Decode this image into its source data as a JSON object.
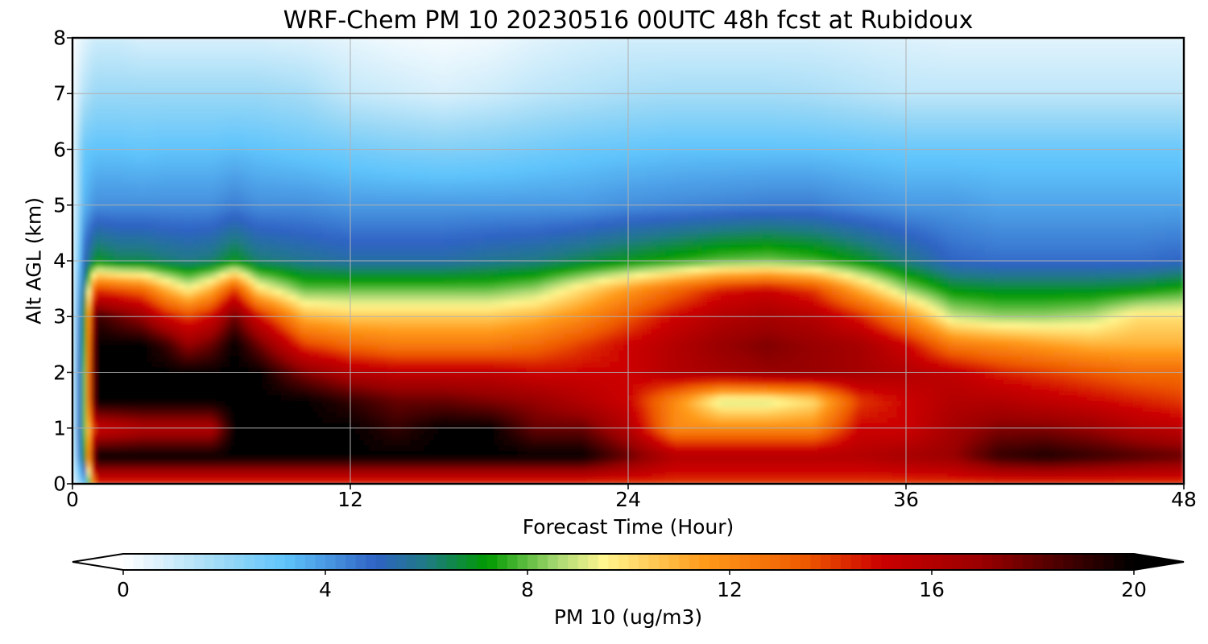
{
  "chart_data": {
    "type": "heatmap",
    "title": "WRF-Chem PM 10  20230516 00UTC 48h fcst at Rubidoux",
    "xlabel": "Forecast Time (Hour)",
    "ylabel": "Alt AGL (km)",
    "xlim": [
      0,
      48
    ],
    "ylim": [
      0,
      8
    ],
    "x_ticks": [
      "0",
      "12",
      "24",
      "36",
      "48"
    ],
    "y_ticks": [
      "0",
      "1",
      "2",
      "3",
      "4",
      "5",
      "6",
      "7",
      "8"
    ],
    "grid": true,
    "colorbar": {
      "label": "PM 10  (ug/m3)",
      "range": [
        0,
        20
      ],
      "ticks": [
        "0",
        "4",
        "8",
        "12",
        "16",
        "20"
      ],
      "extend": "both",
      "orientation": "horizontal",
      "placement": "bottom",
      "color_stops": [
        {
          "v": 0,
          "c": "#ffffff"
        },
        {
          "v": 2,
          "c": "#9ad8f6"
        },
        {
          "v": 3.2,
          "c": "#5fc4fb"
        },
        {
          "v": 5,
          "c": "#2f63c4"
        },
        {
          "v": 6,
          "c": "#1f7a84"
        },
        {
          "v": 7.2,
          "c": "#009a00"
        },
        {
          "v": 8.6,
          "c": "#a9d873"
        },
        {
          "v": 9.5,
          "c": "#fff68f"
        },
        {
          "v": 11.5,
          "c": "#ff9a1a"
        },
        {
          "v": 13.5,
          "c": "#ee5a00"
        },
        {
          "v": 15,
          "c": "#cc0000"
        },
        {
          "v": 17,
          "c": "#990000"
        },
        {
          "v": 20,
          "c": "#000000"
        }
      ]
    },
    "times": [
      0,
      0.5,
      1,
      2,
      3,
      4,
      5,
      6,
      7,
      8,
      10,
      12,
      14,
      16,
      18,
      20,
      22,
      24,
      26,
      28,
      30,
      32,
      34,
      36,
      38,
      40,
      42,
      44,
      46,
      48
    ],
    "altitudes_km": [
      0,
      0.5,
      1,
      1.5,
      2,
      2.5,
      3,
      3.5,
      4,
      5,
      6,
      7,
      8
    ],
    "values": [
      [
        0.5,
        3,
        14,
        14,
        14,
        14,
        14,
        14,
        14,
        14,
        14,
        14,
        14,
        14,
        14,
        14,
        14,
        14,
        14,
        14,
        14,
        14,
        14,
        14,
        14,
        14,
        14,
        14,
        14,
        14
      ],
      [
        0.5,
        7,
        20,
        20,
        20,
        20,
        20,
        20,
        20,
        20,
        20,
        20,
        20,
        20,
        20,
        20,
        20,
        18,
        16,
        16,
        16,
        16,
        16,
        16.5,
        17,
        19,
        19.5,
        19,
        18.5,
        18
      ],
      [
        0.5,
        8,
        15,
        15.5,
        16,
        16,
        16,
        16,
        20,
        20,
        20,
        20,
        19,
        20,
        20,
        18,
        18,
        16,
        12,
        12,
        12,
        12,
        15,
        15,
        16.5,
        17.5,
        17.5,
        17,
        16,
        15.5
      ],
      [
        0.5,
        8,
        20,
        20,
        20,
        20,
        20,
        20,
        20,
        20,
        20,
        19,
        18,
        18,
        17.5,
        17,
        16,
        15,
        12,
        9,
        9,
        10,
        14,
        15,
        16,
        16,
        15.5,
        15,
        14.5,
        14
      ],
      [
        0.5,
        8,
        20,
        20,
        20,
        20,
        20,
        20,
        20,
        20,
        17.5,
        16,
        15.5,
        15.5,
        15.5,
        15,
        15,
        15,
        16,
        16.5,
        17,
        17,
        16.5,
        16,
        15.5,
        14.5,
        14,
        13.5,
        13,
        13
      ],
      [
        0.5,
        7.5,
        20,
        20,
        20,
        19,
        17,
        18,
        20,
        18,
        14,
        13,
        12.5,
        12.5,
        12.5,
        13,
        14,
        15,
        16,
        17,
        17.5,
        17,
        16.5,
        15,
        12.5,
        12,
        11.5,
        11,
        11,
        11
      ],
      [
        0.5,
        7,
        19,
        18,
        17,
        15,
        14,
        15,
        18,
        15,
        11,
        10.5,
        10.5,
        10.5,
        10.5,
        11,
        12,
        13.5,
        15,
        16,
        16.5,
        16,
        14.5,
        12,
        9,
        8.5,
        8.5,
        8.8,
        10,
        10
      ],
      [
        0.5,
        6,
        14,
        13.5,
        13,
        11,
        9.5,
        11,
        14,
        10,
        8,
        8,
        8,
        8,
        8,
        8.5,
        10,
        11.5,
        13,
        14.5,
        15,
        14,
        11,
        8.5,
        7,
        6.8,
        6.8,
        6.8,
        7,
        7.5
      ],
      [
        0.5,
        5,
        7,
        6.5,
        6.5,
        6.2,
        6,
        6.2,
        7,
        6.2,
        5.8,
        5.5,
        5.5,
        5.5,
        5.8,
        6,
        6.5,
        7,
        7.5,
        8,
        8.2,
        7.8,
        7,
        6,
        5,
        4.8,
        4.8,
        4.8,
        4.8,
        5
      ],
      [
        0.5,
        3.5,
        4.2,
        4.2,
        4.2,
        4.2,
        4.2,
        4.2,
        4.5,
        4.2,
        4.2,
        4,
        4,
        4,
        4,
        4,
        4,
        4.2,
        4.3,
        4.4,
        4.5,
        4.5,
        4.2,
        4,
        4,
        3.8,
        3.8,
        3.8,
        3.8,
        3.8
      ],
      [
        0.5,
        3,
        3.2,
        3.2,
        3.1,
        3.2,
        3.2,
        3.2,
        3.3,
        3.2,
        3,
        2.8,
        2.6,
        2.5,
        2.6,
        2.8,
        3,
        3.1,
        3.2,
        3.2,
        3.2,
        3.2,
        3.1,
        3,
        3,
        3,
        3,
        3,
        3,
        3
      ],
      [
        0.3,
        1.5,
        2,
        2,
        2,
        2,
        2,
        2,
        2,
        2,
        1.8,
        1.2,
        1,
        0.8,
        1,
        1.3,
        1.5,
        1.7,
        1.8,
        1.8,
        1.8,
        1.7,
        1.5,
        1.3,
        1.3,
        1.3,
        1.3,
        1.3,
        1.3,
        1.3
      ],
      [
        0.1,
        0.6,
        1,
        1,
        0.8,
        0.8,
        0.8,
        0.8,
        0.8,
        0.8,
        0.7,
        0.5,
        0.3,
        0.2,
        0.3,
        0.6,
        0.8,
        0.9,
        0.9,
        0.9,
        0.9,
        0.9,
        0.8,
        0.7,
        0.6,
        0.6,
        0.6,
        0.6,
        0.6,
        0.6
      ]
    ]
  }
}
